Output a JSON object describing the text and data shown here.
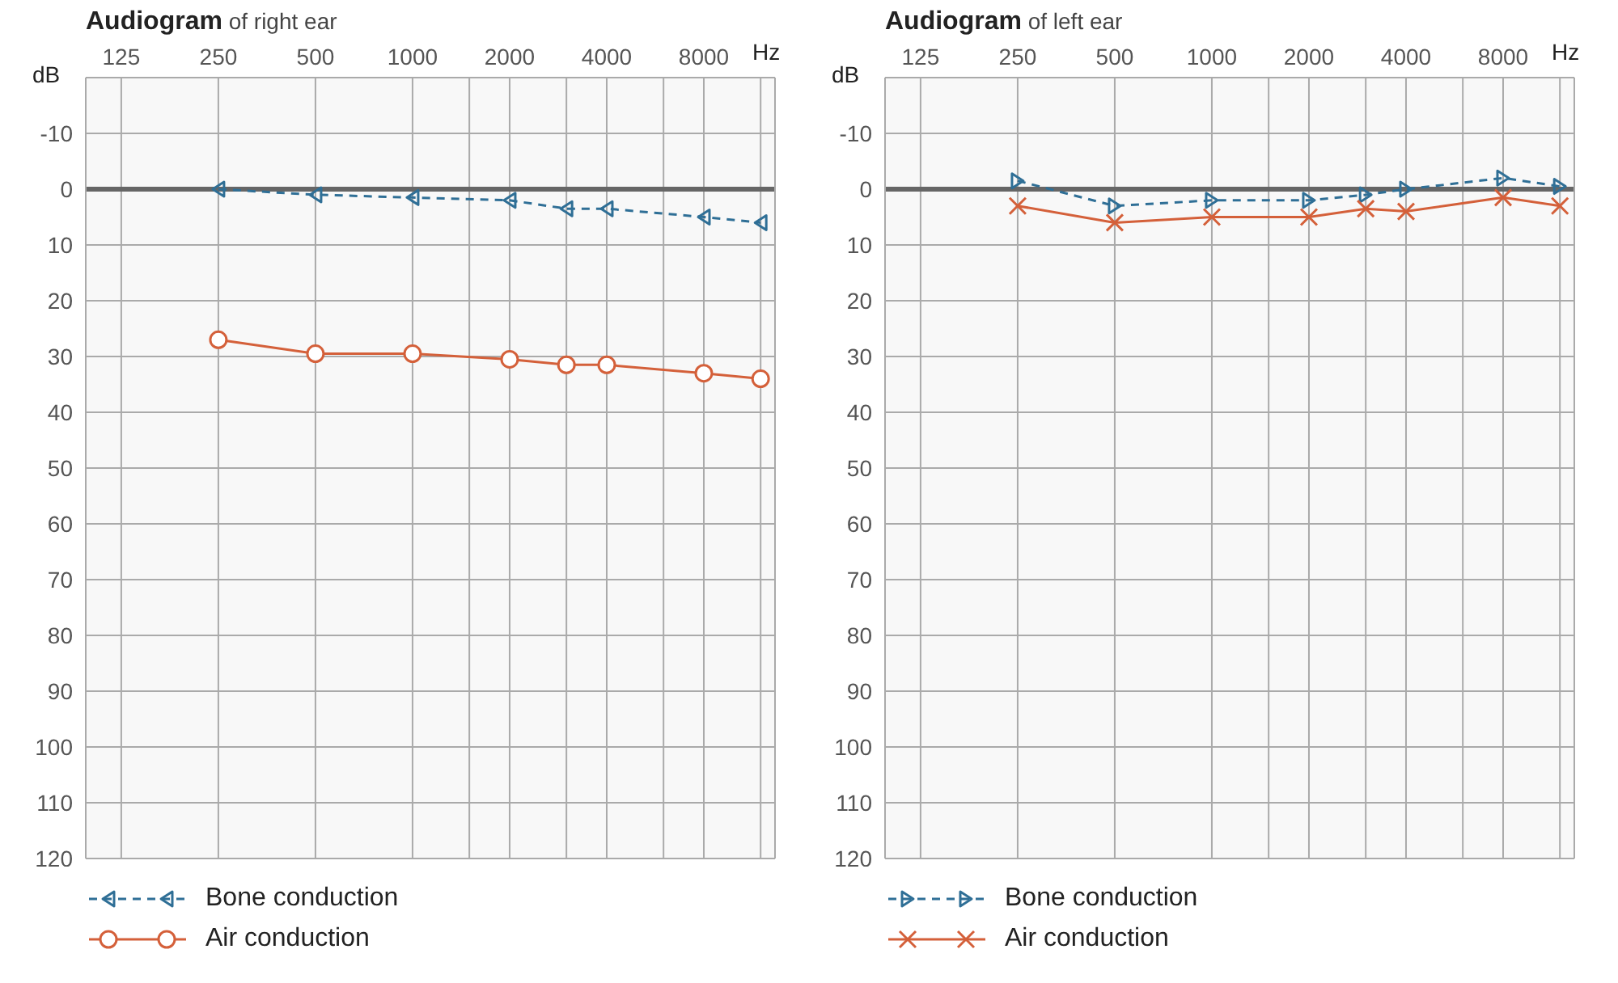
{
  "chart_data": [
    {
      "type": "line",
      "title": "Audiogram of right ear",
      "xlabel": "Hz",
      "ylabel": "dB",
      "log": "x",
      "xlim": [
        97,
        13300
      ],
      "ylim": [
        120,
        -20
      ],
      "xticks": [
        125,
        250,
        500,
        1000,
        {
          "value": 1500,
          "label": null
        },
        2000,
        {
          "value": 3000,
          "label": null
        },
        4000,
        {
          "value": 6000,
          "label": null
        },
        8000,
        {
          "value": 12000,
          "label": null
        }
      ],
      "yticks": [
        -10,
        0,
        10,
        20,
        30,
        40,
        50,
        60,
        70,
        80,
        90,
        100,
        110,
        120
      ],
      "grid": true,
      "legend": "bottom",
      "ref_lines": [
        {
          "axis": "y",
          "value": 0,
          "color": "#666666"
        }
      ],
      "series": [
        {
          "name": "Bone conduction",
          "color": "#2f6f96",
          "line_style": "dashed",
          "marker": "triangle",
          "x": [
            250,
            500,
            1000,
            2000,
            3000,
            4000,
            8000,
            12000
          ],
          "values": [
            0,
            1,
            1.5,
            2,
            3.5,
            3.5,
            5,
            6
          ]
        },
        {
          "name": "Air conduction",
          "color": "#d4603a",
          "line_style": "solid",
          "marker": "circle",
          "x": [
            250,
            500,
            1000,
            2000,
            3000,
            4000,
            8000,
            12000
          ],
          "values": [
            27,
            29.5,
            29.5,
            30.5,
            31.5,
            31.5,
            33,
            34
          ]
        }
      ]
    },
    {
      "type": "line",
      "title": "Audiogram of left ear",
      "xlabel": "Hz",
      "ylabel": "dB",
      "log": "x",
      "xlim": [
        97,
        13300
      ],
      "ylim": [
        120,
        -20
      ],
      "xticks": [
        125,
        250,
        500,
        1000,
        {
          "value": 1500,
          "label": null
        },
        2000,
        {
          "value": 3000,
          "label": null
        },
        4000,
        {
          "value": 6000,
          "label": null
        },
        8000,
        {
          "value": 12000,
          "label": null
        }
      ],
      "yticks": [
        -10,
        0,
        10,
        20,
        30,
        40,
        50,
        60,
        70,
        80,
        90,
        100,
        110,
        120
      ],
      "grid": true,
      "legend": "bottom",
      "ref_lines": [
        {
          "axis": "y",
          "value": 0,
          "color": "#666666"
        }
      ],
      "series": [
        {
          "name": "Bone conduction",
          "color": "#2f6f96",
          "line_style": "dashed",
          "marker": "triangle",
          "x": [
            250,
            500,
            1000,
            2000,
            3000,
            4000,
            8000,
            12000
          ],
          "values": [
            -1.5,
            3,
            2,
            2,
            1,
            0,
            -2,
            -0.5
          ]
        },
        {
          "name": "Air conduction",
          "color": "#d4603a",
          "line_style": "solid",
          "marker": "cross",
          "x": [
            250,
            500,
            1000,
            2000,
            3000,
            4000,
            8000,
            12000
          ],
          "values": [
            3,
            6,
            5,
            5,
            3.5,
            4,
            1.5,
            3
          ]
        }
      ]
    }
  ]
}
